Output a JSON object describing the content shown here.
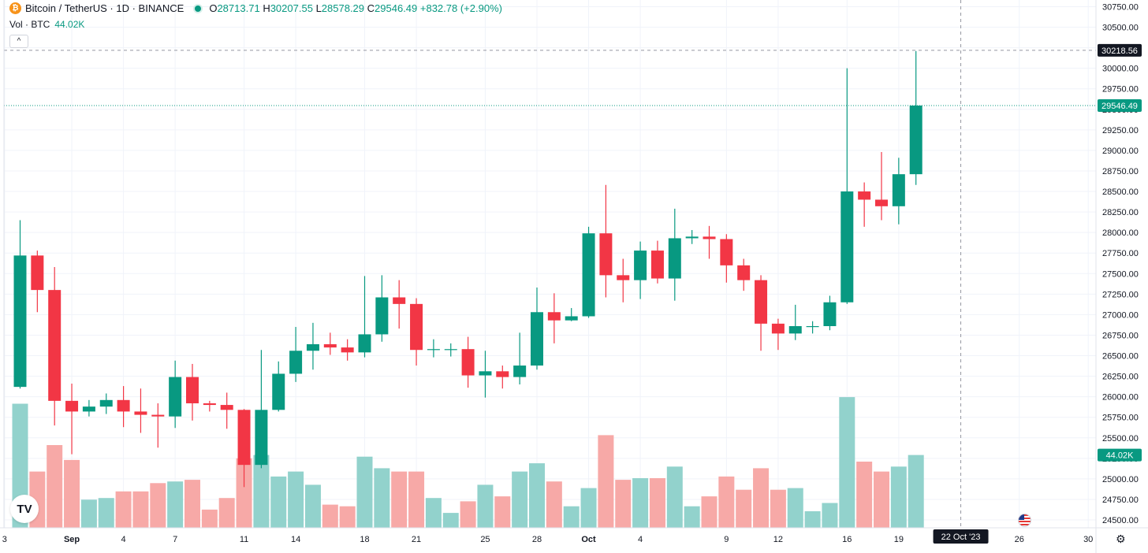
{
  "legend": {
    "symbol": "Bitcoin / TetherUS · 1D · BINANCE",
    "o_label": "O",
    "o_value": "28713.71",
    "h_label": "H",
    "h_value": "30207.55",
    "l_label": "L",
    "l_value": "28578.29",
    "c_label": "C",
    "c_value": "29546.49 +832.78 (+2.90%)",
    "vol_label": "Vol · BTC",
    "vol_value": "44.02K",
    "collapse_glyph": "^"
  },
  "icons": {
    "coin": "bitcoin-icon",
    "tv_logo": "tradingview-logo",
    "flag": "us-flag-icon",
    "settings": "gear-icon"
  },
  "colors": {
    "up": "#089981",
    "down": "#f23645",
    "up_vol": "#92d2cc",
    "down_vol": "#f7a9a7",
    "grid": "#f0f3fa"
  },
  "chart_data": {
    "type": "candlestick",
    "y_axis": {
      "range": [
        24400,
        30800
      ],
      "ticks": [
        "30750.00",
        "30500.00",
        "30250.00",
        "30000.00",
        "29750.00",
        "29500.00",
        "29250.00",
        "29000.00",
        "28750.00",
        "28500.00",
        "28250.00",
        "28000.00",
        "27750.00",
        "27500.00",
        "27250.00",
        "27000.00",
        "26750.00",
        "26500.00",
        "26250.00",
        "26000.00",
        "25750.00",
        "25500.00",
        "25250.00",
        "25000.00",
        "24750.00",
        "24500.00"
      ]
    },
    "x_axis": {
      "ticks": [
        {
          "idx": -0.9,
          "label": "3"
        },
        {
          "idx": 3,
          "label": "Sep",
          "bold": true
        },
        {
          "idx": 6,
          "label": "4"
        },
        {
          "idx": 9,
          "label": "7"
        },
        {
          "idx": 13,
          "label": "11"
        },
        {
          "idx": 16,
          "label": "14"
        },
        {
          "idx": 20,
          "label": "18"
        },
        {
          "idx": 23,
          "label": "21"
        },
        {
          "idx": 27,
          "label": "25"
        },
        {
          "idx": 30,
          "label": "28"
        },
        {
          "idx": 33,
          "label": "Oct",
          "bold": true
        },
        {
          "idx": 36,
          "label": "4"
        },
        {
          "idx": 41,
          "label": "9"
        },
        {
          "idx": 44,
          "label": "12"
        },
        {
          "idx": 48,
          "label": "16"
        },
        {
          "idx": 51,
          "label": "19"
        },
        {
          "idx": 58,
          "label": "26"
        },
        {
          "idx": 62,
          "label": "30"
        }
      ],
      "crosshair_label": "22 Oct '23"
    },
    "crosshair_price": "30218.56",
    "last_price": "29546.49",
    "volume_badge": "44.02K",
    "candles": [
      {
        "o": 26120,
        "h": 28150,
        "l": 26100,
        "c": 27720,
        "v": 0.75
      },
      {
        "o": 27720,
        "h": 27780,
        "l": 27030,
        "c": 27300,
        "v": 0.34
      },
      {
        "o": 27300,
        "h": 27580,
        "l": 25650,
        "c": 25950,
        "v": 0.5
      },
      {
        "o": 25950,
        "h": 26160,
        "l": 25300,
        "c": 25820,
        "v": 0.41
      },
      {
        "o": 25820,
        "h": 25960,
        "l": 25760,
        "c": 25880,
        "v": 0.17
      },
      {
        "o": 25880,
        "h": 26040,
        "l": 25790,
        "c": 25960,
        "v": 0.18
      },
      {
        "o": 25960,
        "h": 26130,
        "l": 25630,
        "c": 25820,
        "v": 0.22
      },
      {
        "o": 25820,
        "h": 26100,
        "l": 25560,
        "c": 25780,
        "v": 0.22
      },
      {
        "o": 25780,
        "h": 25920,
        "l": 25380,
        "c": 25760,
        "v": 0.27
      },
      {
        "o": 25760,
        "h": 26440,
        "l": 25620,
        "c": 26240,
        "v": 0.28
      },
      {
        "o": 26240,
        "h": 26400,
        "l": 25710,
        "c": 25920,
        "v": 0.29
      },
      {
        "o": 25920,
        "h": 25950,
        "l": 25820,
        "c": 25900,
        "v": 0.11
      },
      {
        "o": 25900,
        "h": 26050,
        "l": 25610,
        "c": 25840,
        "v": 0.18
      },
      {
        "o": 25840,
        "h": 25850,
        "l": 24900,
        "c": 25170,
        "v": 0.42
      },
      {
        "o": 25170,
        "h": 26570,
        "l": 25130,
        "c": 25840,
        "v": 0.44
      },
      {
        "o": 25840,
        "h": 26430,
        "l": 25820,
        "c": 26280,
        "v": 0.31
      },
      {
        "o": 26280,
        "h": 26850,
        "l": 26180,
        "c": 26560,
        "v": 0.34
      },
      {
        "o": 26560,
        "h": 26900,
        "l": 26330,
        "c": 26640,
        "v": 0.26
      },
      {
        "o": 26640,
        "h": 26780,
        "l": 26510,
        "c": 26600,
        "v": 0.14
      },
      {
        "o": 26600,
        "h": 26700,
        "l": 26440,
        "c": 26540,
        "v": 0.13
      },
      {
        "o": 26540,
        "h": 27470,
        "l": 26480,
        "c": 26760,
        "v": 0.43
      },
      {
        "o": 26760,
        "h": 27480,
        "l": 26670,
        "c": 27210,
        "v": 0.36
      },
      {
        "o": 27210,
        "h": 27420,
        "l": 26830,
        "c": 27130,
        "v": 0.34
      },
      {
        "o": 27130,
        "h": 27200,
        "l": 26380,
        "c": 26570,
        "v": 0.34
      },
      {
        "o": 26570,
        "h": 26700,
        "l": 26480,
        "c": 26580,
        "v": 0.18
      },
      {
        "o": 26580,
        "h": 26650,
        "l": 26490,
        "c": 26580,
        "v": 0.09
      },
      {
        "o": 26580,
        "h": 26730,
        "l": 26110,
        "c": 26260,
        "v": 0.16
      },
      {
        "o": 26260,
        "h": 26560,
        "l": 25990,
        "c": 26310,
        "v": 0.26
      },
      {
        "o": 26310,
        "h": 26380,
        "l": 26100,
        "c": 26240,
        "v": 0.19
      },
      {
        "o": 26240,
        "h": 26780,
        "l": 26150,
        "c": 26380,
        "v": 0.34
      },
      {
        "o": 26380,
        "h": 27330,
        "l": 26330,
        "c": 27030,
        "v": 0.39
      },
      {
        "o": 27030,
        "h": 27260,
        "l": 26650,
        "c": 26930,
        "v": 0.28
      },
      {
        "o": 26930,
        "h": 27080,
        "l": 26920,
        "c": 26980,
        "v": 0.13
      },
      {
        "o": 26980,
        "h": 28070,
        "l": 26960,
        "c": 27990,
        "v": 0.24
      },
      {
        "o": 27990,
        "h": 28580,
        "l": 27210,
        "c": 27480,
        "v": 0.56
      },
      {
        "o": 27480,
        "h": 27680,
        "l": 27150,
        "c": 27420,
        "v": 0.29
      },
      {
        "o": 27420,
        "h": 27890,
        "l": 27190,
        "c": 27780,
        "v": 0.3
      },
      {
        "o": 27780,
        "h": 27900,
        "l": 27380,
        "c": 27440,
        "v": 0.3
      },
      {
        "o": 27440,
        "h": 28290,
        "l": 27170,
        "c": 27930,
        "v": 0.37
      },
      {
        "o": 27930,
        "h": 28030,
        "l": 27860,
        "c": 27950,
        "v": 0.13
      },
      {
        "o": 27950,
        "h": 28080,
        "l": 27680,
        "c": 27920,
        "v": 0.19
      },
      {
        "o": 27920,
        "h": 27980,
        "l": 27390,
        "c": 27600,
        "v": 0.31
      },
      {
        "o": 27600,
        "h": 27680,
        "l": 27290,
        "c": 27420,
        "v": 0.23
      },
      {
        "o": 27420,
        "h": 27480,
        "l": 26560,
        "c": 26890,
        "v": 0.36
      },
      {
        "o": 26890,
        "h": 26950,
        "l": 26570,
        "c": 26770,
        "v": 0.23
      },
      {
        "o": 26770,
        "h": 27120,
        "l": 26690,
        "c": 26860,
        "v": 0.24
      },
      {
        "o": 26860,
        "h": 26920,
        "l": 26770,
        "c": 26860,
        "v": 0.1
      },
      {
        "o": 26860,
        "h": 27230,
        "l": 26810,
        "c": 27150,
        "v": 0.15
      },
      {
        "o": 27150,
        "h": 30000,
        "l": 27130,
        "c": 28500,
        "v": 0.79
      },
      {
        "o": 28500,
        "h": 28610,
        "l": 28070,
        "c": 28400,
        "v": 0.4
      },
      {
        "o": 28400,
        "h": 28980,
        "l": 28150,
        "c": 28320,
        "v": 0.34
      },
      {
        "o": 28320,
        "h": 28910,
        "l": 28100,
        "c": 28710,
        "v": 0.37
      },
      {
        "o": 28710,
        "h": 30210,
        "l": 28580,
        "c": 29546,
        "v": 0.44
      }
    ]
  }
}
